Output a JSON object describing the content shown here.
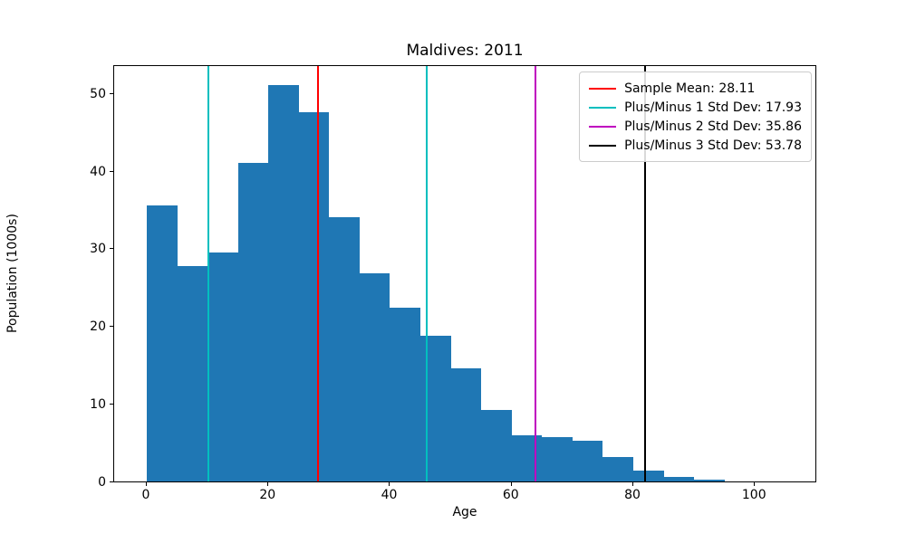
{
  "chart_data": {
    "type": "bar",
    "subtype": "histogram",
    "title": "Maldives: 2011",
    "xlabel": "Age",
    "ylabel": "Population (1000s)",
    "bar_color": "#1f77b4",
    "grid": false,
    "legend_position": "upper right",
    "bin_width": 5,
    "bin_edges": [
      0,
      5,
      10,
      15,
      20,
      25,
      30,
      35,
      40,
      45,
      50,
      55,
      60,
      65,
      70,
      75,
      80,
      85,
      90,
      95
    ],
    "categories": [
      "0-5",
      "5-10",
      "10-15",
      "15-20",
      "20-25",
      "25-30",
      "30-35",
      "35-40",
      "40-45",
      "45-50",
      "50-55",
      "55-60",
      "60-65",
      "65-70",
      "70-75",
      "75-80",
      "80-85",
      "85-90",
      "90-95"
    ],
    "values": [
      35.5,
      27.7,
      29.5,
      41.0,
      51.0,
      47.5,
      34.0,
      26.8,
      22.4,
      18.8,
      14.6,
      9.2,
      5.9,
      5.7,
      5.2,
      3.2,
      1.4,
      0.6,
      0.25
    ],
    "xlim": [
      -5.36,
      110.24
    ],
    "ylim": [
      0,
      53.7
    ],
    "xticks": [
      0,
      20,
      40,
      60,
      80,
      100
    ],
    "yticks": [
      0,
      10,
      20,
      30,
      40,
      50
    ],
    "vlines": [
      {
        "x": 28.11,
        "color": "#ff0000",
        "name": "sample-mean-line"
      },
      {
        "x": 10.18,
        "color": "#00bfbf",
        "name": "minus-1-std-line"
      },
      {
        "x": 46.04,
        "color": "#00bfbf",
        "name": "plus-1-std-line"
      },
      {
        "x": 63.97,
        "color": "#bf00bf",
        "name": "plus-2-std-line"
      },
      {
        "x": 81.89,
        "color": "#000000",
        "name": "plus-3-std-line"
      }
    ],
    "legend": [
      {
        "label": "Sample Mean: 28.11",
        "color": "#ff0000"
      },
      {
        "label": "Plus/Minus 1 Std Dev: 17.93",
        "color": "#00bfbf"
      },
      {
        "label": "Plus/Minus 2 Std Dev: 35.86",
        "color": "#bf00bf"
      },
      {
        "label": "Plus/Minus 3 Std Dev: 53.78",
        "color": "#000000"
      }
    ]
  }
}
